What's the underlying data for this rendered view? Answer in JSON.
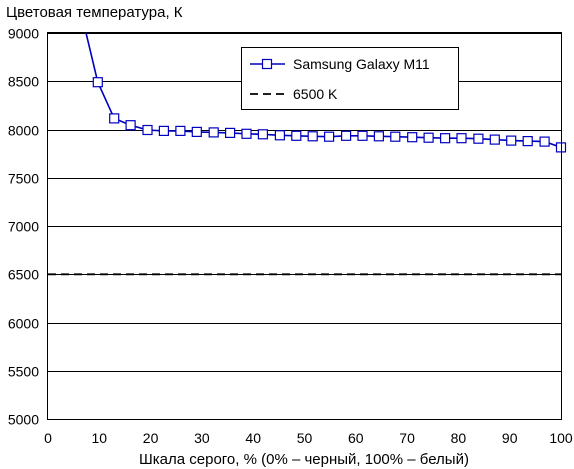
{
  "chart_data": {
    "type": "line",
    "title": "",
    "ylabel": "Цветовая температура, К",
    "xlabel": "Шкала серого, % (0% – черный, 100% – белый)",
    "xlim": [
      0,
      100
    ],
    "ylim": [
      5000,
      9000
    ],
    "xticks": [
      "0",
      "10",
      "20",
      "30",
      "40",
      "50",
      "60",
      "70",
      "80",
      "90",
      "100"
    ],
    "yticks": [
      "5000",
      "5500",
      "6000",
      "6500",
      "7000",
      "7500",
      "8000",
      "8500",
      "9000"
    ],
    "grid": "horizontal",
    "legend_position": "top-right",
    "series": [
      {
        "name": "Samsung Galaxy M11",
        "color": "#0000c0",
        "marker": "square",
        "x": [
          7.2,
          9.7,
          12.9,
          16.1,
          19.4,
          22.6,
          25.8,
          29.0,
          32.3,
          35.5,
          38.7,
          41.9,
          45.2,
          48.4,
          51.6,
          54.8,
          58.1,
          61.3,
          64.5,
          67.7,
          71.0,
          74.2,
          77.4,
          80.6,
          83.9,
          87.1,
          90.3,
          93.5,
          96.8,
          100
        ],
        "y": [
          9050,
          8490,
          8115,
          8045,
          7995,
          7985,
          7985,
          7975,
          7970,
          7965,
          7955,
          7950,
          7940,
          7935,
          7930,
          7925,
          7935,
          7935,
          7930,
          7925,
          7920,
          7915,
          7910,
          7910,
          7905,
          7895,
          7885,
          7880,
          7875,
          7815
        ],
        "markers_from_index": 1
      },
      {
        "name": "6500 K",
        "color": "#000000",
        "dash": "dashed",
        "x": [
          0,
          100
        ],
        "y": [
          6500,
          6500
        ]
      }
    ]
  }
}
